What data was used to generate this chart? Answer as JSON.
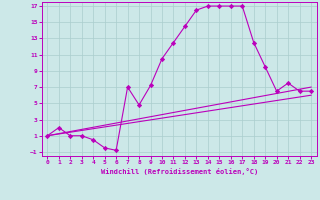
{
  "xlabel": "Windchill (Refroidissement éolien,°C)",
  "xlim": [
    -0.5,
    23.5
  ],
  "ylim": [
    -1.5,
    17.5
  ],
  "xticks": [
    0,
    1,
    2,
    3,
    4,
    5,
    6,
    7,
    8,
    9,
    10,
    11,
    12,
    13,
    14,
    15,
    16,
    17,
    18,
    19,
    20,
    21,
    22,
    23
  ],
  "yticks": [
    -1,
    1,
    3,
    5,
    7,
    9,
    11,
    13,
    15,
    17
  ],
  "bg_color": "#cce8e8",
  "line_color": "#bb00bb",
  "grid_color": "#aacece",
  "line1_x": [
    0,
    1,
    2,
    3,
    4,
    5,
    6,
    7,
    8,
    9,
    10,
    11,
    12,
    13,
    14,
    15,
    16,
    17,
    18,
    19,
    20,
    21,
    22,
    23
  ],
  "line1_y": [
    1,
    2,
    1,
    1,
    0.5,
    -0.5,
    -0.8,
    7,
    4.8,
    7.2,
    10.5,
    12.5,
    14.5,
    16.5,
    17,
    17,
    17,
    17,
    12.5,
    9.5,
    6.5,
    7.5,
    6.5,
    6.5
  ],
  "line2_x": [
    0,
    23
  ],
  "line2_y": [
    1,
    7
  ],
  "line3_x": [
    0,
    23
  ],
  "line3_y": [
    1,
    6
  ]
}
